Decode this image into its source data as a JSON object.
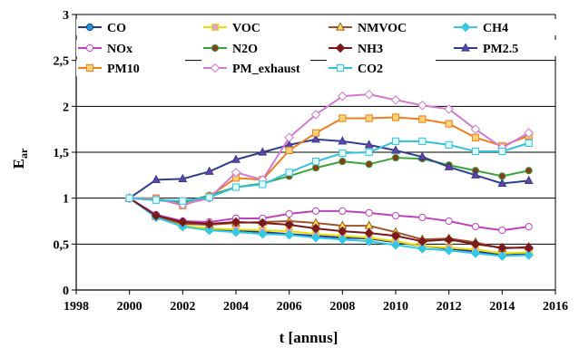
{
  "chart_data": {
    "type": "line",
    "xlabel": "t [annus]",
    "ylabel_main": "E",
    "ylabel_sub": "ar",
    "xlim": [
      1998,
      2016
    ],
    "ylim": [
      0,
      3
    ],
    "xticks": [
      "1998",
      "2000",
      "2002",
      "2004",
      "2006",
      "2008",
      "2010",
      "2012",
      "2014",
      "2016"
    ],
    "yticks": [
      "0",
      "0,5",
      "1",
      "1,5",
      "2",
      "2,5",
      "3"
    ],
    "grid": "horizontal",
    "legend_position": "top",
    "x": [
      2000,
      2001,
      2002,
      2003,
      2004,
      2005,
      2006,
      2007,
      2008,
      2009,
      2010,
      2011,
      2012,
      2013,
      2014,
      2015
    ],
    "series": [
      {
        "name": "CO",
        "color": "#1f3a93",
        "marker": "circle",
        "fill": "#1a9ad6",
        "values": [
          1,
          0.8,
          0.7,
          0.66,
          0.65,
          0.63,
          0.61,
          0.59,
          0.57,
          0.56,
          0.52,
          0.48,
          0.45,
          0.42,
          0.38,
          0.39
        ]
      },
      {
        "name": "VOC",
        "color": "#e8e000",
        "marker": "square",
        "fill": "#e6a0c8",
        "values": [
          1,
          0.8,
          0.7,
          0.67,
          0.66,
          0.65,
          0.64,
          0.61,
          0.59,
          0.57,
          0.53,
          0.48,
          0.46,
          0.44,
          0.4,
          0.41
        ]
      },
      {
        "name": "NMVOC",
        "color": "#a0522d",
        "marker": "triangle",
        "fill": "#ffe84d",
        "values": [
          1,
          0.8,
          0.72,
          0.71,
          0.73,
          0.74,
          0.75,
          0.73,
          0.7,
          0.7,
          0.63,
          0.55,
          0.56,
          0.52,
          0.45,
          0.47
        ]
      },
      {
        "name": "CH4",
        "color": "#33c8e6",
        "marker": "diamond",
        "fill": "#33c8e6",
        "values": [
          1,
          0.79,
          0.69,
          0.65,
          0.63,
          0.61,
          0.6,
          0.57,
          0.55,
          0.53,
          0.49,
          0.45,
          0.43,
          0.4,
          0.37,
          0.38
        ]
      },
      {
        "name": "NOx",
        "color": "#c040c0",
        "marker": "circle",
        "fill": "#ffffff",
        "values": [
          1,
          0.82,
          0.75,
          0.74,
          0.78,
          0.78,
          0.83,
          0.86,
          0.86,
          0.84,
          0.81,
          0.79,
          0.75,
          0.69,
          0.65,
          0.69
        ]
      },
      {
        "name": "N2O",
        "color": "#3aa33a",
        "marker": "circle",
        "fill": "#8b3a1a",
        "values": [
          1,
          0.98,
          0.95,
          1.03,
          1.12,
          1.16,
          1.24,
          1.33,
          1.4,
          1.37,
          1.44,
          1.43,
          1.36,
          1.3,
          1.24,
          1.3
        ]
      },
      {
        "name": "NH3",
        "color": "#7a1a1a",
        "marker": "diamond",
        "fill": "#7a1a1a",
        "values": [
          1,
          0.81,
          0.74,
          0.72,
          0.74,
          0.73,
          0.71,
          0.67,
          0.64,
          0.62,
          0.59,
          0.53,
          0.55,
          0.5,
          0.46,
          0.46
        ]
      },
      {
        "name": "PM2.5",
        "color": "#2e3f8f",
        "marker": "triangle",
        "fill": "#6a3fa8",
        "values": [
          1,
          1.2,
          1.21,
          1.29,
          1.42,
          1.5,
          1.58,
          1.64,
          1.62,
          1.58,
          1.52,
          1.45,
          1.34,
          1.25,
          1.16,
          1.19
        ]
      },
      {
        "name": "PM10",
        "color": "#f07d1a",
        "marker": "square",
        "fill": "#f7d37a",
        "values": [
          1,
          1.0,
          0.92,
          1.02,
          1.22,
          1.2,
          1.52,
          1.71,
          1.87,
          1.87,
          1.88,
          1.86,
          1.81,
          1.66,
          1.57,
          1.68
        ]
      },
      {
        "name": "PM_exhaust",
        "color": "#d07ad0",
        "marker": "diamond",
        "fill": "#ffffff",
        "values": [
          1,
          0.99,
          0.93,
          1.0,
          1.28,
          1.2,
          1.66,
          1.91,
          2.11,
          2.13,
          2.07,
          2.01,
          1.97,
          1.75,
          1.55,
          1.71
        ]
      },
      {
        "name": "CO2",
        "color": "#33c0dd",
        "marker": "square",
        "fill": "#e0ffff",
        "values": [
          1,
          0.98,
          0.97,
          1.01,
          1.12,
          1.15,
          1.28,
          1.4,
          1.49,
          1.5,
          1.62,
          1.62,
          1.58,
          1.51,
          1.51,
          1.6
        ]
      }
    ]
  }
}
